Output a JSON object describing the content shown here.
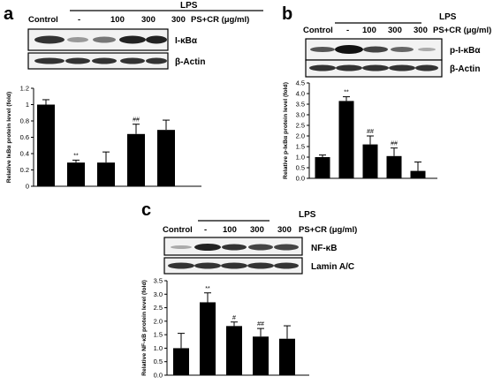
{
  "panels": [
    {
      "letter": "a",
      "lps_label": "LPS",
      "lanes": [
        "Control",
        "-",
        "100",
        "300",
        "300"
      ],
      "treatment_label": "PS+CR (μg/ml)",
      "blots": [
        "I-κBα",
        "β-Actin"
      ]
    },
    {
      "letter": "b",
      "lps_label": "LPS",
      "lanes": [
        "Control",
        "-",
        "100",
        "300",
        "300"
      ],
      "treatment_label": "PS+CR (μg/ml)",
      "blots": [
        "p-I-κBα",
        "β-Actin"
      ]
    },
    {
      "letter": "c",
      "lps_label": "LPS",
      "lanes": [
        "Control",
        "-",
        "100",
        "300",
        "300"
      ],
      "treatment_label": "PS+CR (μg/ml)",
      "blots": [
        "NF-κB",
        "Lamin A/C"
      ]
    }
  ],
  "chart_data": [
    {
      "type": "bar",
      "panel": "a",
      "categories": [
        "Control",
        "-",
        "100",
        "300",
        "300"
      ],
      "values": [
        1.0,
        0.29,
        0.29,
        0.64,
        0.69
      ],
      "errors": [
        0.06,
        0.03,
        0.13,
        0.12,
        0.12
      ],
      "significance": [
        "",
        "**",
        "",
        "##",
        ""
      ],
      "ylabel": "Relative IκBα protein level (fold)",
      "ylim": [
        0,
        1.2
      ],
      "yticks": [
        "0",
        "0.2",
        "0.4",
        "0.6",
        "0.8",
        "1",
        "1.2"
      ],
      "grid": false
    },
    {
      "type": "bar",
      "panel": "b",
      "categories": [
        "Control",
        "-",
        "100",
        "300",
        "300"
      ],
      "values": [
        1.0,
        3.65,
        1.6,
        1.05,
        0.35
      ],
      "errors": [
        0.1,
        0.2,
        0.4,
        0.38,
        0.42
      ],
      "significance": [
        "",
        "**",
        "##",
        "##",
        ""
      ],
      "ylabel": "Relative p-IκBα protein level (fold)",
      "ylim": [
        0,
        4.5
      ],
      "yticks": [
        "0.0",
        "0.5",
        "1.0",
        "1.5",
        "2.0",
        "2.5",
        "3.0",
        "3.5",
        "4.0",
        "4.5"
      ],
      "grid": false
    },
    {
      "type": "bar",
      "panel": "c",
      "categories": [
        "Control",
        "-",
        "100",
        "300",
        "300"
      ],
      "values": [
        1.0,
        2.7,
        1.82,
        1.43,
        1.35
      ],
      "errors": [
        0.55,
        0.35,
        0.15,
        0.3,
        0.48
      ],
      "significance": [
        "",
        "**",
        "#",
        "##",
        ""
      ],
      "ylabel": "Relative NF-κB protein level (fold)",
      "ylim": [
        0,
        3.5
      ],
      "yticks": [
        "0.0",
        "0.5",
        "1.0",
        "1.5",
        "2.0",
        "2.5",
        "3.0",
        "3.5"
      ],
      "grid": false
    }
  ]
}
